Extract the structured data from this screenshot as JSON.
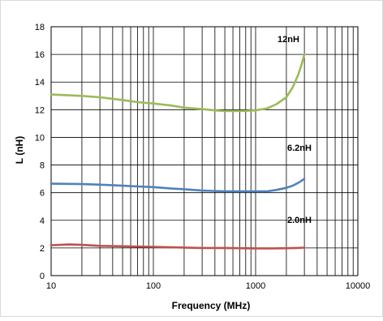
{
  "chart_data": {
    "type": "line",
    "title": "",
    "xlabel": "Frequency (MHz)",
    "ylabel": "L (nH)",
    "xscale": "log",
    "xlim": [
      10,
      10000
    ],
    "ylim": [
      0,
      18
    ],
    "x_ticks": [
      10,
      100,
      1000,
      10000
    ],
    "x_tick_labels": [
      "10",
      "100",
      "1000",
      "10000"
    ],
    "y_ticks": [
      0,
      2,
      4,
      6,
      8,
      10,
      12,
      14,
      16,
      18
    ],
    "y_tick_labels": [
      "0",
      "2",
      "4",
      "6",
      "8",
      "10",
      "12",
      "14",
      "16",
      "18"
    ],
    "grid": true,
    "legend": "none",
    "series": [
      {
        "name": "12nH",
        "color": "#9bbb59",
        "x": [
          10,
          20,
          30,
          50,
          70,
          100,
          150,
          200,
          300,
          400,
          500,
          700,
          1000,
          1300,
          1600,
          2000,
          2300,
          2600,
          2800,
          3000
        ],
        "y": [
          13.1,
          13.0,
          12.9,
          12.7,
          12.55,
          12.45,
          12.3,
          12.15,
          12.05,
          11.95,
          11.9,
          11.9,
          11.95,
          12.1,
          12.4,
          12.9,
          13.6,
          14.5,
          15.2,
          16.0
        ]
      },
      {
        "name": "6.2nH",
        "color": "#4f81bd",
        "x": [
          10,
          20,
          30,
          50,
          70,
          100,
          150,
          200,
          300,
          500,
          700,
          1000,
          1300,
          1600,
          2000,
          2300,
          2600,
          2800,
          3000
        ],
        "y": [
          6.65,
          6.62,
          6.58,
          6.5,
          6.45,
          6.4,
          6.3,
          6.25,
          6.15,
          6.1,
          6.1,
          6.1,
          6.1,
          6.2,
          6.35,
          6.5,
          6.7,
          6.85,
          7.0
        ]
      },
      {
        "name": "2.0nH",
        "color": "#c0504d",
        "x": [
          10,
          15,
          20,
          30,
          50,
          70,
          100,
          200,
          300,
          500,
          700,
          1000,
          1500,
          2000,
          2500,
          3000
        ],
        "y": [
          2.2,
          2.25,
          2.22,
          2.15,
          2.12,
          2.1,
          2.08,
          2.03,
          2.0,
          2.0,
          1.98,
          1.97,
          1.97,
          1.98,
          2.0,
          2.02
        ]
      }
    ]
  },
  "annotations": {
    "label_12nH": "12nH",
    "label_6_2nH": "6.2nH",
    "label_2_0nH": "2.0nH"
  }
}
